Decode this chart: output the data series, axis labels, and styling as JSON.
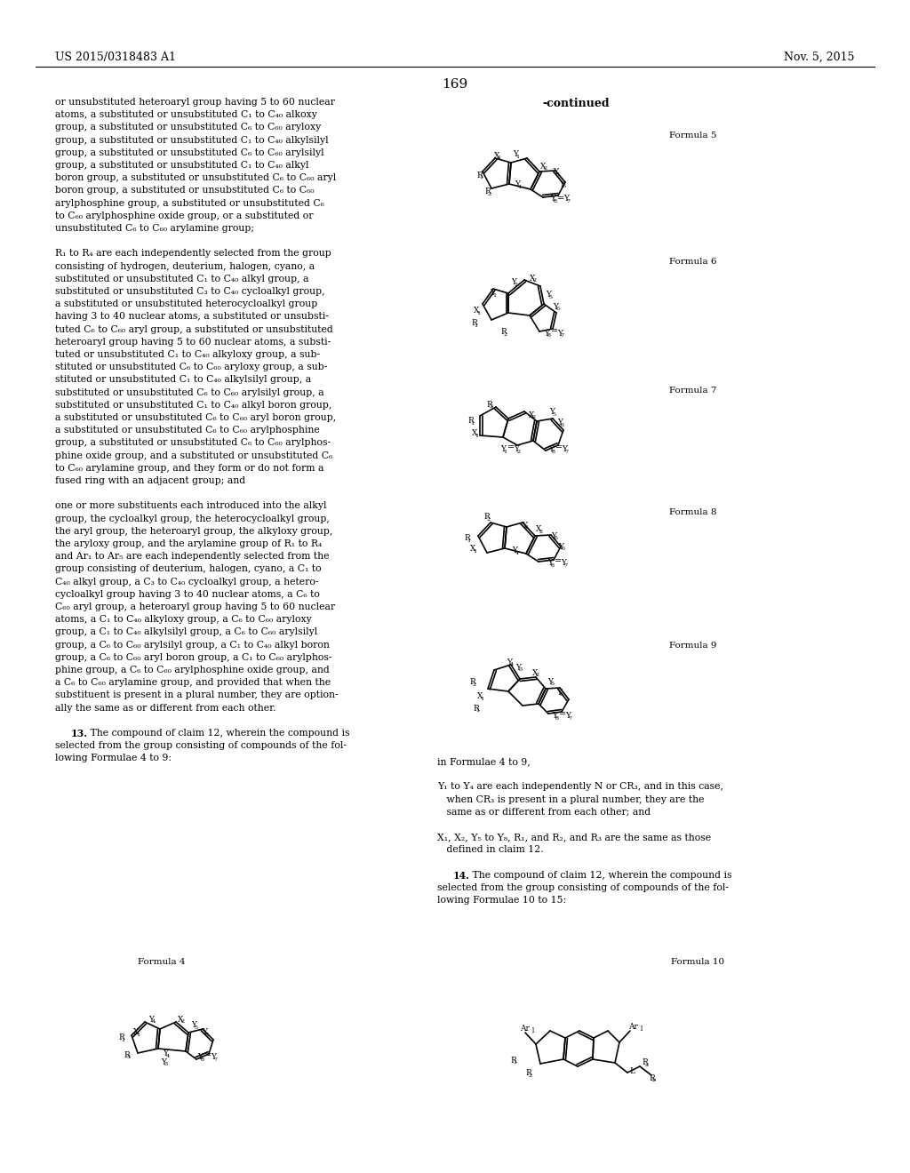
{
  "background_color": "#ffffff",
  "page_header_left": "US 2015/0318483 A1",
  "page_header_right": "Nov. 5, 2015",
  "page_number": "169",
  "continued_label": "-continued",
  "left_text_lines": [
    "or unsubstituted heteroaryl group having 5 to 60 nuclear",
    "atoms, a substituted or unsubstituted C₁ to C₄₀ alkoxy",
    "group, a substituted or unsubstituted C₆ to C₆₀ aryloxy",
    "group, a substituted or unsubstituted C₁ to C₄₀ alkylsilyl",
    "group, a substituted or unsubstituted C₆ to C₆₀ arylsilyl",
    "group, a substituted or unsubstituted C₁ to C₄₀ alkyl",
    "boron group, a substituted or unsubstituted C₆ to C₆₀ aryl",
    "boron group, a substituted or unsubstituted C₆ to C₆₀",
    "arylphosphine group, a substituted or unsubstituted C₆",
    "to C₆₀ arylphosphine oxide group, or a substituted or",
    "unsubstituted C₆ to C₆₀ arylamine group;",
    "",
    "R₁ to R₄ are each independently selected from the group",
    "consisting of hydrogen, deuterium, halogen, cyano, a",
    "substituted or unsubstituted C₁ to C₄₀ alkyl group, a",
    "substituted or unsubstituted C₃ to C₄₀ cycloalkyl group,",
    "a substituted or unsubstituted heterocycloalkyl group",
    "having 3 to 40 nuclear atoms, a substituted or unsubsti-",
    "tuted C₆ to C₆₀ aryl group, a substituted or unsubstituted",
    "heteroaryl group having 5 to 60 nuclear atoms, a substi-",
    "tuted or unsubstituted C₁ to C₄₀ alkyloxy group, a sub-",
    "stituted or unsubstituted C₆ to C₆₀ aryloxy group, a sub-",
    "stituted or unsubstituted C₁ to C₄₀ alkylsilyl group, a",
    "substituted or unsubstituted C₆ to C₆₀ arylsilyl group, a",
    "substituted or unsubstituted C₁ to C₄₀ alkyl boron group,",
    "a substituted or unsubstituted C₆ to C₆₀ aryl boron group,",
    "a substituted or unsubstituted C₆ to C₆₀ arylphosphine",
    "group, a substituted or unsubstituted C₆ to C₆₀ arylphos-",
    "phine oxide group, and a substituted or unsubstituted C₆",
    "to C₆₀ arylamine group, and they form or do not form a",
    "fused ring with an adjacent group; and",
    "",
    "one or more substituents each introduced into the alkyl",
    "group, the cycloalkyl group, the heterocycloalkyl group,",
    "the aryl group, the heteroaryl group, the alkyloxy group,",
    "the aryloxy group, and the arylamine group of R₁ to R₄",
    "and Ar₁ to Ar₅ are each independently selected from the",
    "group consisting of deuterium, halogen, cyano, a C₁ to",
    "C₄₀ alkyl group, a C₃ to C₄₀ cycloalkyl group, a hetero-",
    "cycloalkyl group having 3 to 40 nuclear atoms, a C₆ to",
    "C₆₀ aryl group, a heteroaryl group having 5 to 60 nuclear",
    "atoms, a C₁ to C₄₀ alkyloxy group, a C₆ to C₆₀ aryloxy",
    "group, a C₁ to C₄₀ alkylsilyl group, a C₆ to C₆₀ arylsilyl",
    "group, a C₆ to C₆₀ arylsilyl group, a C₁ to C₄₀ alkyl boron",
    "group, a C₆ to C₆₀ aryl boron group, a C₁ to C₆₀ arylphos-",
    "phine group, a C₆ to C₆₀ arylphosphine oxide group, and",
    "a C₆ to C₆₀ arylamine group, and provided that when the",
    "substituent is present in a plural number, they are option-",
    "ally the same as or different from each other.",
    "",
    "   13. The compound of claim 12, wherein the compound is",
    "selected from the group consisting of compounds of the fol-",
    "lowing Formulae 4 to 9:"
  ],
  "definition_text": [
    "in Formulae 4 to 9,",
    "",
    "Y₁ to Y₄ are each independently N or CR₃, and in this case,",
    "   when CR₃ is present in a plural number, they are the",
    "   same as or different from each other; and",
    "",
    "X₁, X₂, Y₅ to Y₈, R₁, and R₂, and R₃ are the same as those",
    "   defined in claim 12.",
    "",
    "   14. The compound of claim 12, wherein the compound is",
    "selected from the group consisting of compounds of the fol-",
    "lowing Formulae 10 to 15:"
  ]
}
